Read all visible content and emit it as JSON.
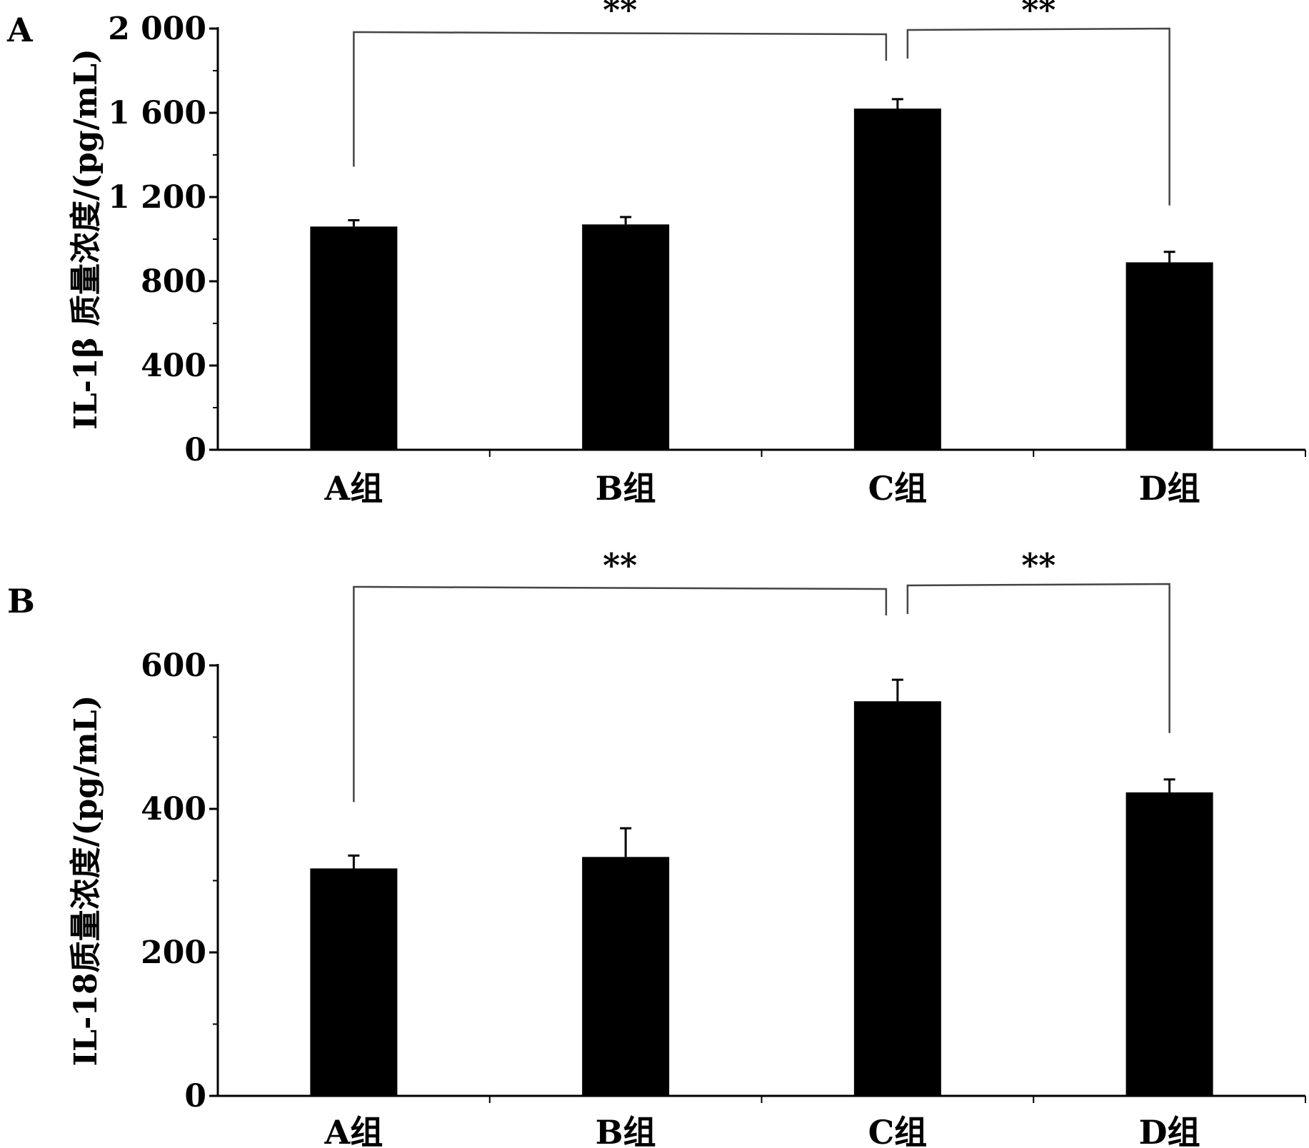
{
  "chart_data": [
    {
      "type": "bar",
      "panel_label": "A",
      "ylabel": "IL-1β 质量浓度/(pg/mL)",
      "categories": [
        "A组",
        "B组",
        "C组",
        "D组"
      ],
      "values": [
        1060,
        1070,
        1620,
        890
      ],
      "errors": [
        30,
        35,
        45,
        50
      ],
      "ylim": [
        0,
        2000
      ],
      "yticks": [
        0,
        400,
        800,
        1200,
        1600,
        2000
      ],
      "ytick_labels": [
        "0",
        "400",
        "800",
        "1 200",
        "1 600",
        "2 000"
      ],
      "bar_color": "#000000",
      "grid": false,
      "significance": [
        {
          "from": 0,
          "to": 2,
          "label": "**"
        },
        {
          "from": 2,
          "to": 3,
          "label": "**"
        }
      ]
    },
    {
      "type": "bar",
      "panel_label": "B",
      "ylabel": "IL-18质量浓度/(pg/mL)",
      "categories": [
        "A组",
        "B组",
        "C组",
        "D组"
      ],
      "values": [
        317,
        333,
        550,
        423
      ],
      "errors": [
        18,
        40,
        30,
        18
      ],
      "ylim": [
        0,
        600
      ],
      "yticks": [
        0,
        200,
        400,
        600
      ],
      "ytick_labels": [
        "0",
        "200",
        "400",
        "600"
      ],
      "bar_color": "#000000",
      "grid": false,
      "significance": [
        {
          "from": 0,
          "to": 2,
          "label": "**"
        },
        {
          "from": 2,
          "to": 3,
          "label": "**"
        }
      ]
    }
  ]
}
